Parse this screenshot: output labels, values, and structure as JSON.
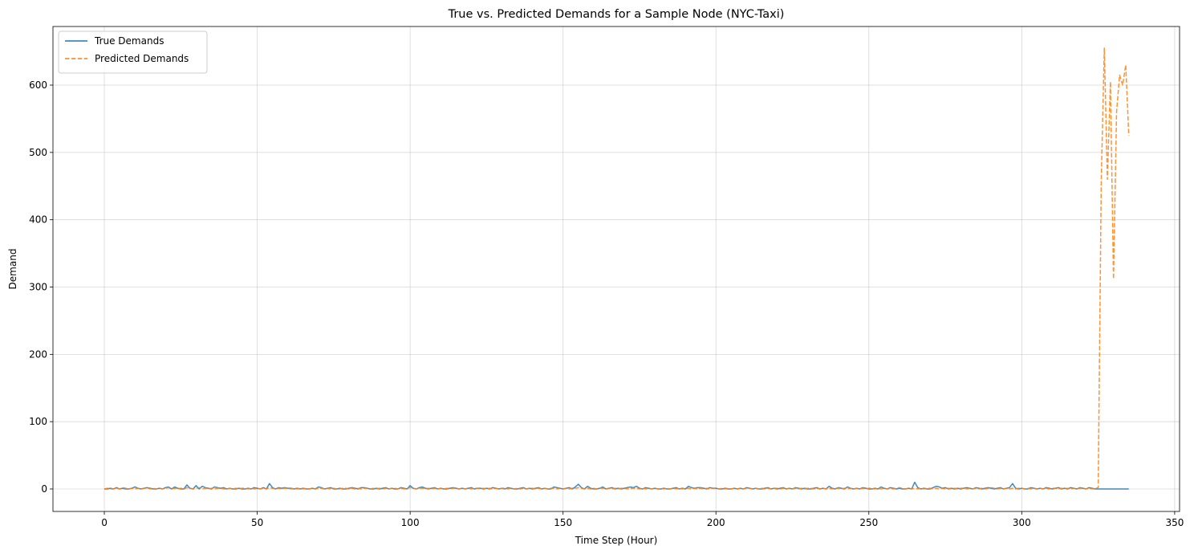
{
  "chart_data": {
    "type": "line",
    "title": "True vs. Predicted Demands for a Sample Node (NYC-Taxi)",
    "xlabel": "Time Step (Hour)",
    "ylabel": "Demand",
    "xlim": [
      -16.8,
      351.6
    ],
    "ylim": [
      -33.4,
      687.1
    ],
    "xticks": [
      0,
      50,
      100,
      150,
      200,
      250,
      300,
      350
    ],
    "yticks": [
      0,
      100,
      200,
      300,
      400,
      500,
      600
    ],
    "grid": true,
    "legend": "upper left",
    "x": [
      0,
      1,
      2,
      3,
      4,
      5,
      6,
      7,
      8,
      9,
      10,
      11,
      12,
      13,
      14,
      15,
      16,
      17,
      18,
      19,
      20,
      21,
      22,
      23,
      24,
      25,
      26,
      27,
      28,
      29,
      30,
      31,
      32,
      33,
      34,
      35,
      36,
      37,
      38,
      39,
      40,
      41,
      42,
      43,
      44,
      45,
      46,
      47,
      48,
      49,
      50,
      51,
      52,
      53,
      54,
      55,
      56,
      57,
      58,
      59,
      60,
      61,
      62,
      63,
      64,
      65,
      66,
      67,
      68,
      69,
      70,
      71,
      72,
      73,
      74,
      75,
      76,
      77,
      78,
      79,
      80,
      81,
      82,
      83,
      84,
      85,
      86,
      87,
      88,
      89,
      90,
      91,
      92,
      93,
      94,
      95,
      96,
      97,
      98,
      99,
      100,
      101,
      102,
      103,
      104,
      105,
      106,
      107,
      108,
      109,
      110,
      111,
      112,
      113,
      114,
      115,
      116,
      117,
      118,
      119,
      120,
      121,
      122,
      123,
      124,
      125,
      126,
      127,
      128,
      129,
      130,
      131,
      132,
      133,
      134,
      135,
      136,
      137,
      138,
      139,
      140,
      141,
      142,
      143,
      144,
      145,
      146,
      147,
      148,
      149,
      150,
      151,
      152,
      153,
      154,
      155,
      156,
      157,
      158,
      159,
      160,
      161,
      162,
      163,
      164,
      165,
      166,
      167,
      168,
      169,
      170,
      171,
      172,
      173,
      174,
      175,
      176,
      177,
      178,
      179,
      180,
      181,
      182,
      183,
      184,
      185,
      186,
      187,
      188,
      189,
      190,
      191,
      192,
      193,
      194,
      195,
      196,
      197,
      198,
      199,
      200,
      201,
      202,
      203,
      204,
      205,
      206,
      207,
      208,
      209,
      210,
      211,
      212,
      213,
      214,
      215,
      216,
      217,
      218,
      219,
      220,
      221,
      222,
      223,
      224,
      225,
      226,
      227,
      228,
      229,
      230,
      231,
      232,
      233,
      234,
      235,
      236,
      237,
      238,
      239,
      240,
      241,
      242,
      243,
      244,
      245,
      246,
      247,
      248,
      249,
      250,
      251,
      252,
      253,
      254,
      255,
      256,
      257,
      258,
      259,
      260,
      261,
      262,
      263,
      264,
      265,
      266,
      267,
      268,
      269,
      270,
      271,
      272,
      273,
      274,
      275,
      276,
      277,
      278,
      279,
      280,
      281,
      282,
      283,
      284,
      285,
      286,
      287,
      288,
      289,
      290,
      291,
      292,
      293,
      294,
      295,
      296,
      297,
      298,
      299,
      300,
      301,
      302,
      303,
      304,
      305,
      306,
      307,
      308,
      309,
      310,
      311,
      312,
      313,
      314,
      315,
      316,
      317,
      318,
      319,
      320,
      321,
      322,
      323,
      324,
      325,
      326,
      327,
      328,
      329,
      330,
      331,
      332,
      333,
      334,
      335
    ],
    "series": [
      {
        "name": "True Demands",
        "color": "#1f77b4",
        "dash": false,
        "values": [
          0,
          0,
          1,
          0,
          2,
          0,
          1,
          0,
          0,
          1,
          3,
          1,
          0,
          1,
          2,
          1,
          0,
          0,
          1,
          0,
          2,
          3,
          0,
          3,
          1,
          0,
          0,
          6,
          1,
          0,
          5,
          0,
          4,
          2,
          1,
          0,
          3,
          2,
          1,
          2,
          0,
          1,
          0,
          0,
          1,
          0,
          0,
          1,
          0,
          2,
          1,
          0,
          2,
          0,
          8,
          2,
          0,
          2,
          1,
          2,
          1,
          1,
          0,
          1,
          0,
          1,
          0,
          0,
          1,
          0,
          3,
          2,
          0,
          1,
          2,
          0,
          0,
          1,
          0,
          0,
          1,
          2,
          1,
          0,
          2,
          2,
          1,
          0,
          0,
          1,
          0,
          1,
          2,
          0,
          1,
          0,
          0,
          2,
          1,
          0,
          5,
          1,
          0,
          2,
          3,
          1,
          0,
          1,
          2,
          0,
          1,
          0,
          0,
          1,
          2,
          1,
          0,
          1,
          0,
          1,
          2,
          0,
          1,
          1,
          0,
          1,
          0,
          2,
          1,
          0,
          1,
          0,
          2,
          1,
          0,
          0,
          1,
          2,
          0,
          1,
          0,
          1,
          2,
          0,
          1,
          0,
          0,
          3,
          2,
          1,
          0,
          1,
          2,
          0,
          3,
          7,
          2,
          0,
          4,
          1,
          0,
          0,
          1,
          3,
          0,
          1,
          2,
          0,
          1,
          0,
          1,
          2,
          3,
          2,
          4,
          1,
          0,
          2,
          1,
          0,
          1,
          0,
          0,
          1,
          0,
          0,
          1,
          2,
          0,
          1,
          0,
          4,
          2,
          1,
          2,
          2,
          1,
          0,
          2,
          1,
          1,
          0,
          0,
          1,
          0,
          0,
          1,
          0,
          1,
          0,
          2,
          1,
          0,
          1,
          0,
          0,
          1,
          2,
          0,
          1,
          0,
          1,
          2,
          0,
          1,
          0,
          2,
          1,
          0,
          1,
          0,
          0,
          1,
          2,
          0,
          1,
          0,
          4,
          1,
          0,
          2,
          1,
          0,
          3,
          1,
          0,
          1,
          0,
          2,
          1,
          0,
          0,
          1,
          0,
          3,
          1,
          0,
          2,
          1,
          0,
          1,
          0,
          0,
          1,
          0,
          10,
          2,
          0,
          1,
          0,
          0,
          2,
          4,
          3,
          1,
          2,
          0,
          1,
          0,
          1,
          0,
          1,
          2,
          1,
          0,
          2,
          1,
          0,
          1,
          2,
          1,
          0,
          1,
          2,
          0,
          1,
          2,
          8,
          1,
          0,
          1,
          0,
          0,
          2,
          1,
          0,
          1,
          0,
          2,
          1,
          0,
          1,
          2,
          0,
          1,
          0,
          2,
          1,
          0,
          2,
          1,
          0,
          2,
          1,
          0,
          0,
          0,
          0,
          0,
          0,
          0,
          0,
          0,
          0,
          0,
          0
        ]
      },
      {
        "name": "Predicted Demands",
        "color": "#ff7f0e",
        "dash": true,
        "values": [
          0,
          1,
          0,
          0,
          1,
          0,
          2,
          1,
          0,
          1,
          0,
          1,
          0,
          1,
          2,
          0,
          1,
          0,
          1,
          0,
          1,
          2,
          0,
          1,
          0,
          1,
          0,
          2,
          1,
          0,
          1,
          2,
          0,
          1,
          0,
          1,
          0,
          1,
          1,
          0,
          0,
          1,
          0,
          1,
          0,
          1,
          1,
          0,
          1,
          0,
          1,
          0,
          1,
          0,
          2,
          1,
          0,
          1,
          0,
          1,
          1,
          0,
          1,
          0,
          1,
          0,
          1,
          0,
          1,
          0,
          1,
          1,
          0,
          1,
          0,
          1,
          0,
          0,
          1,
          1,
          0,
          1,
          0,
          1,
          0,
          1,
          1,
          0,
          1,
          0,
          1,
          0,
          1,
          0,
          1,
          1,
          0,
          1,
          0,
          1,
          2,
          1,
          0,
          1,
          1,
          0,
          1,
          0,
          1,
          0,
          1,
          0,
          1,
          0,
          1,
          1,
          0,
          1,
          0,
          1,
          0,
          1,
          1,
          0,
          1,
          0,
          1,
          0,
          1,
          0,
          1,
          1,
          0,
          1,
          0,
          1,
          0,
          1,
          0,
          1,
          1,
          0,
          1,
          0,
          1,
          0,
          1,
          1,
          0,
          1,
          0,
          1,
          0,
          1,
          1,
          2,
          1,
          0,
          1,
          0,
          1,
          0,
          1,
          1,
          0,
          1,
          0,
          1,
          0,
          1,
          1,
          0,
          1,
          1,
          1,
          0,
          1,
          0,
          1,
          0,
          1,
          0,
          1,
          0,
          1,
          0,
          1,
          0,
          1,
          0,
          1,
          1,
          0,
          1,
          0,
          1,
          0,
          1,
          0,
          1,
          1,
          0,
          1,
          0,
          1,
          0,
          1,
          0,
          1,
          0,
          1,
          1,
          0,
          1,
          0,
          1,
          0,
          1,
          0,
          1,
          1,
          0,
          1,
          0,
          1,
          0,
          1,
          0,
          1,
          0,
          1,
          1,
          0,
          1,
          0,
          1,
          0,
          1,
          0,
          1,
          1,
          0,
          1,
          0,
          1,
          0,
          1,
          0,
          1,
          0,
          1,
          1,
          0,
          1,
          0,
          1,
          0,
          1,
          0,
          1,
          2,
          1,
          0,
          1,
          0,
          1,
          0,
          1,
          0,
          1,
          1,
          0,
          1,
          0,
          1,
          0,
          1,
          0,
          1,
          0,
          1,
          1,
          0,
          1,
          0,
          1,
          0,
          1,
          0,
          1,
          2,
          1,
          0,
          1,
          0,
          1,
          0,
          1,
          0,
          1,
          1,
          0,
          1,
          0,
          1,
          0,
          1,
          0,
          1,
          0,
          1,
          1,
          0,
          1,
          0,
          1,
          0,
          1,
          0,
          1,
          1,
          0,
          1,
          0,
          1,
          2,
          460,
          655,
          460,
          605,
          312,
          560,
          615,
          600,
          630,
          525
        ]
      }
    ]
  }
}
